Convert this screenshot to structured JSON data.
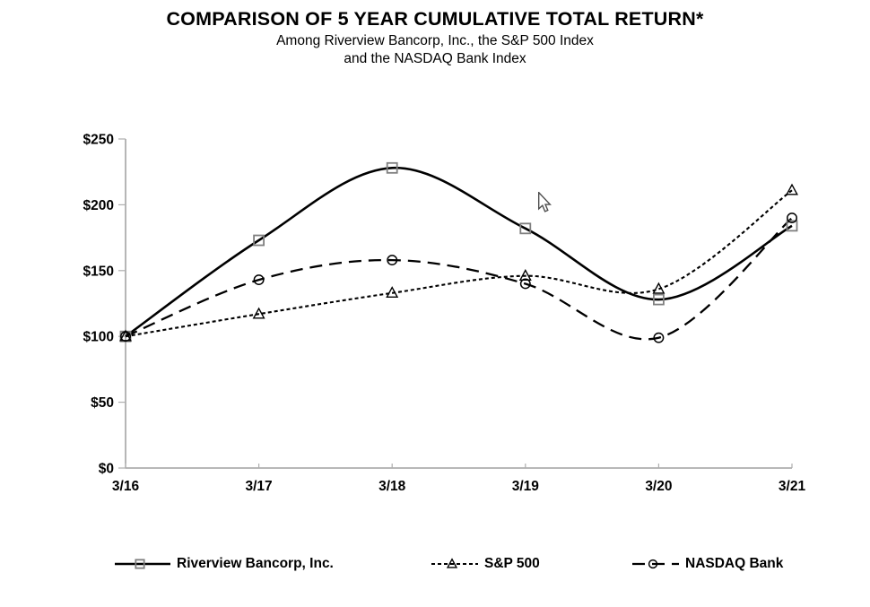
{
  "header": {
    "title": "COMPARISON OF 5 YEAR CUMULATIVE TOTAL RETURN*",
    "subtitle_line1": "Among Riverview Bancorp, Inc., the S&P 500 Index",
    "subtitle_line2": "and the NASDAQ Bank Index"
  },
  "chart_data": {
    "type": "line",
    "title": "COMPARISON OF 5 YEAR CUMULATIVE TOTAL RETURN*",
    "subtitle": "Among Riverview Bancorp, Inc., the S&P 500 Index and the NASDAQ Bank Index",
    "categories": [
      "3/16",
      "3/17",
      "3/18",
      "3/19",
      "3/20",
      "3/21"
    ],
    "series": [
      {
        "name": "Riverview Bancorp, Inc.",
        "values": [
          100,
          173,
          228,
          182,
          128,
          184
        ],
        "line_style": "solid",
        "marker": "square",
        "line_color": "#000000",
        "marker_color": "#7f7f7f"
      },
      {
        "name": "S&P 500",
        "values": [
          100,
          117,
          133,
          146,
          136,
          211
        ],
        "line_style": "short-dash",
        "marker": "triangle",
        "line_color": "#000000",
        "marker_color": "#000000"
      },
      {
        "name": "NASDAQ Bank",
        "values": [
          100,
          143,
          158,
          140,
          99,
          190
        ],
        "line_style": "long-dash",
        "marker": "circle",
        "line_color": "#000000",
        "marker_color": "#000000"
      }
    ],
    "y_ticks": [
      {
        "label": "$0",
        "value": 0
      },
      {
        "label": "$50",
        "value": 50
      },
      {
        "label": "$100",
        "value": 100
      },
      {
        "label": "$150",
        "value": 150
      },
      {
        "label": "$200",
        "value": 200
      },
      {
        "label": "$250",
        "value": 250
      }
    ],
    "ylim": [
      0,
      250
    ],
    "xlabel": "",
    "ylabel": "",
    "grid": "off",
    "line_smoothing": "smoothed",
    "legend_position": "bottom",
    "axis_color": "#8e8e8e",
    "tick_color": "#aeaeae",
    "text_color": "#000000"
  },
  "cursor": {
    "type": "arrow-pointer"
  }
}
